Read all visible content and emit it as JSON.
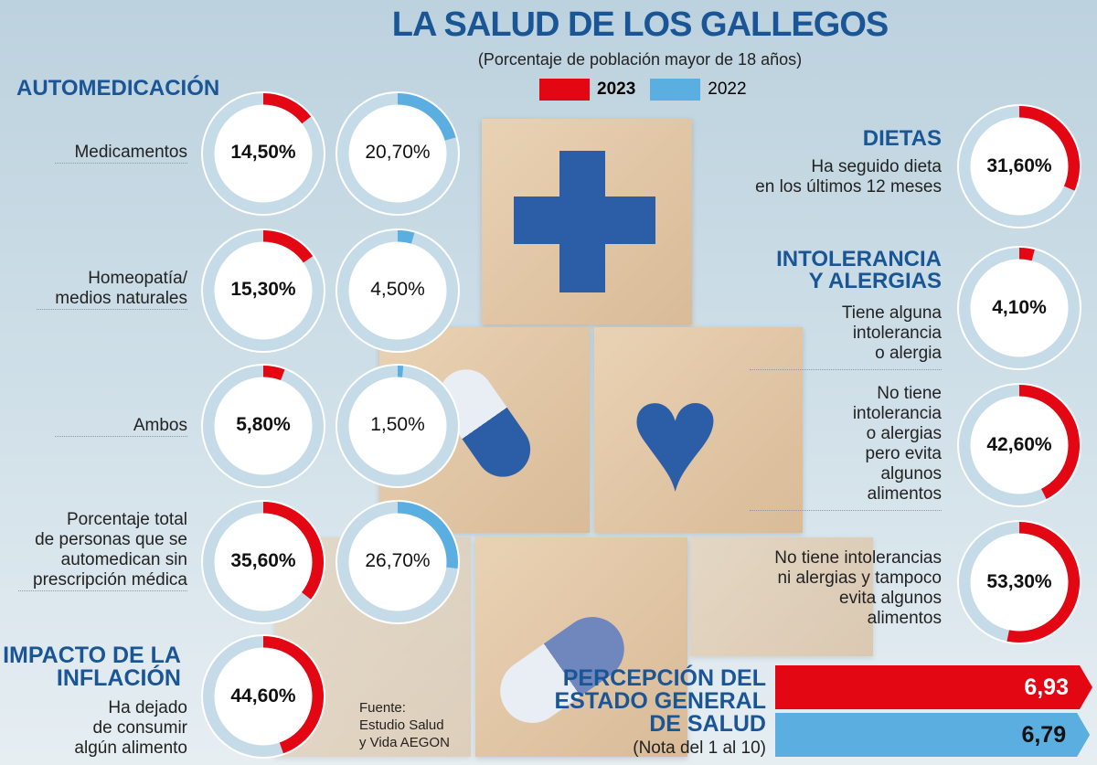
{
  "title": "LA SALUD DE LOS GALLEGOS",
  "subtitle": "(Porcentaje de población mayor de 18 años)",
  "legend": [
    {
      "label": "2023",
      "color": "#e30613"
    },
    {
      "label": "2022",
      "color": "#5aaee0"
    }
  ],
  "colors": {
    "heading": "#1a5595",
    "ring": "#c6dbe8"
  },
  "chart_data": [
    {
      "type": "pie",
      "section": "AUTOMEDICACIÓN",
      "rows": [
        {
          "label": "Medicamentos",
          "v2023": 14.5,
          "t2023": "14,50%",
          "v2022": 20.7,
          "t2022": "20,70%"
        },
        {
          "label": "Homeopatía/ medios naturales",
          "v2023": 15.3,
          "t2023": "15,30%",
          "v2022": 4.5,
          "t2022": "4,50%"
        },
        {
          "label": "Ambos",
          "v2023": 5.8,
          "t2023": "5,80%",
          "v2022": 1.5,
          "t2022": "1,50%"
        },
        {
          "label": "Porcentaje total de personas que se automedican sin prescripción médica",
          "v2023": 35.6,
          "t2023": "35,60%",
          "v2022": 26.7,
          "t2022": "26,70%"
        }
      ]
    },
    {
      "type": "pie",
      "section": "IMPACTO DE LA INFLACIÓN",
      "rows": [
        {
          "label": "Ha dejado de consumir algún alimento",
          "v2023": 44.6,
          "t2023": "44,60%"
        }
      ]
    },
    {
      "type": "pie",
      "section": "DIETAS",
      "rows": [
        {
          "label": "Ha seguido dieta en los últimos 12 meses",
          "v2023": 31.6,
          "t2023": "31,60%"
        }
      ]
    },
    {
      "type": "pie",
      "section": "INTOLERANCIA Y ALERGIAS",
      "rows": [
        {
          "label": "Tiene alguna intolerancia o alergia",
          "v2023": 4.1,
          "t2023": "4,10%"
        },
        {
          "label": "No tiene intolerancia o alergias pero evita algunos alimentos",
          "v2023": 42.6,
          "t2023": "42,60%"
        },
        {
          "label": "No tiene intolerancias ni alergias y tampoco evita algunos alimentos",
          "v2023": 53.3,
          "t2023": "53,30%"
        }
      ]
    },
    {
      "type": "bar",
      "section": "PERCEPCIÓN DEL ESTADO GENERAL DE SALUD",
      "note": "(Nota del 1 al 10)",
      "categories": [
        "2023",
        "2022"
      ],
      "values": [
        6.93,
        6.79
      ],
      "labels": [
        "6,93",
        "6,79"
      ],
      "xlim": [
        1,
        10
      ]
    }
  ],
  "source": "Fuente: Estudio Salud y Vida AEGON",
  "headings": {
    "auto": "AUTOMEDICACIÓN",
    "inflacion_1": "IMPACTO DE LA",
    "inflacion_2": "INFLACIÓN",
    "dietas": "DIETAS",
    "intol_1": "INTOLERANCIA",
    "intol_2": "Y ALERGIAS",
    "perc_1": "PERCEPCIÓN DEL",
    "perc_2": "ESTADO GENERAL",
    "perc_3": "DE SALUD"
  },
  "labels": {
    "med": "Medicamentos",
    "homeo_1": "Homeopatía/",
    "homeo_2": "medios naturales",
    "ambos": "Ambos",
    "tot_1": "Porcentaje total",
    "tot_2": "de personas que se",
    "tot_3": "automedican sin",
    "tot_4": "prescripción médica",
    "inf_1": "Ha dejado",
    "inf_2": "de consumir",
    "inf_3": "algún alimento",
    "diet_1": "Ha seguido dieta",
    "diet_2": "en los últimos 12 meses",
    "i1_1": "Tiene alguna",
    "i1_2": "intolerancia",
    "i1_3": "o alergia",
    "i2_1": "No tiene",
    "i2_2": "intolerancia",
    "i2_3": "o alergias",
    "i2_4": "pero evita",
    "i2_5": "algunos",
    "i2_6": "alimentos",
    "i3_1": "No tiene intolerancias",
    "i3_2": "ni alergias y tampoco",
    "i3_3": "evita algunos",
    "i3_4": "alimentos",
    "src_1": "Fuente:",
    "src_2": "Estudio Salud",
    "src_3": "y Vida AEGON"
  }
}
